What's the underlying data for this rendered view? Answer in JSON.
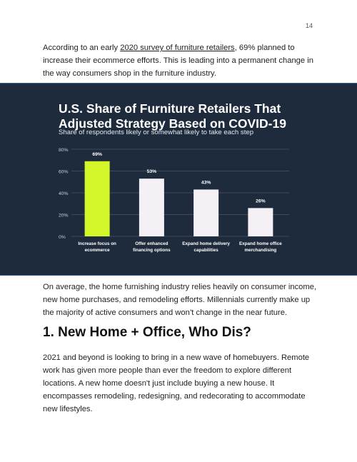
{
  "page_number": "14",
  "paragraph1": {
    "before_link": "According to an early ",
    "link_text": "2020 survey of furniture retailers",
    "after_link": ", 69% planned to increase their ecommerce efforts. This is leading into a permanent change in the way consumers shop in the furniture industry."
  },
  "paragraph2": "On average, the home furnishing industry relies heavily on consumer income, new home purchases, and remodeling efforts. Millennials currently make up the majority of active consumers and won’t change in the near future.",
  "heading": "1. New Home + Office, Who Dis?",
  "paragraph3": "2021 and beyond is looking to bring in a new wave of homebuyers. Remote work has given more people than ever the freedom to explore different locations. A new home doesn't just include buying a new house. It encompasses remodeling, redesigning, and redecorating to accommodate new lifestyles.",
  "colors": {
    "chart_background": "#1e2b3c",
    "highlight_bar": "#d4f72a",
    "bar": "#f4f0f6",
    "gridline": "#4a5566",
    "tick_text": "#c9ced6"
  },
  "chart_data": {
    "type": "bar",
    "title": "U.S. Share of Furniture Retailers That Adjusted Strategy Based on COVID-19",
    "subtitle": "Share of respondents likely or somewhat likely to take each step",
    "categories": [
      [
        "Increase focus on",
        "ecommerce"
      ],
      [
        "Offer enhanced",
        "financing options"
      ],
      [
        "Expand home delivery",
        "capabilities"
      ],
      [
        "Expand home office",
        "merchandising"
      ]
    ],
    "values": [
      69,
      53,
      43,
      26
    ],
    "value_labels": [
      "69%",
      "53%",
      "43%",
      "26%"
    ],
    "ylim": [
      0,
      80
    ],
    "yticks": [
      0,
      20,
      40,
      60,
      80
    ],
    "ytick_labels": [
      "0%",
      "20%",
      "40%",
      "60%",
      "80%"
    ],
    "highlight_index": 0,
    "grid": true
  }
}
